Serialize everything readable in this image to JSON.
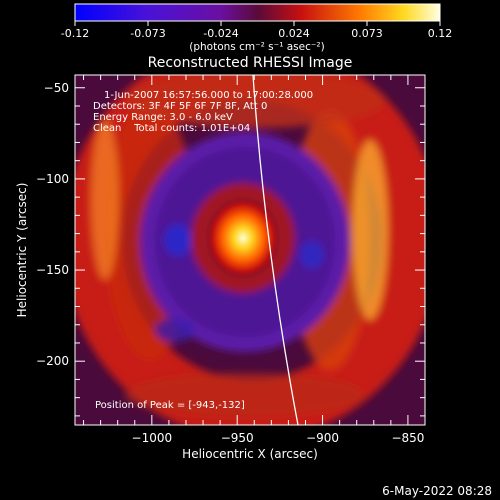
{
  "colorbar": {
    "ticks": [
      "-0.12",
      "-0.073",
      "-0.024",
      "0.024",
      "0.073",
      "0.12"
    ],
    "units": "(photons cm⁻² s⁻¹ asec⁻²)"
  },
  "plot": {
    "title": "Reconstructed RHESSI Image",
    "xlabel": "Heliocentric X (arcsec)",
    "ylabel": "Heliocentric Y (arcsec)",
    "xticks": [
      "−1000",
      "−950",
      "−900",
      "−850"
    ],
    "yticks": [
      "−50",
      "−100",
      "−150",
      "−200"
    ],
    "xlim": [
      -1045,
      -840
    ],
    "ylim": [
      -235,
      -43
    ],
    "info_lines": [
      "1-Jun-2007 16:57:56.000 to 17:00:28.000",
      "Detectors: 3F 4F 5F 6F 7F 8F, Att 0",
      "Energy Range: 3.0 - 6.0 keV",
      "Clean    Total counts: 1.01E+04"
    ],
    "peak_label": "Position of Peak = [-943,-132]",
    "peak": [
      -943,
      -132
    ]
  },
  "footer": {
    "timestamp": "6-May-2022 08:28"
  },
  "colors": {
    "background": "#000000",
    "text": "#ffffff",
    "limb": "#ffffff"
  }
}
